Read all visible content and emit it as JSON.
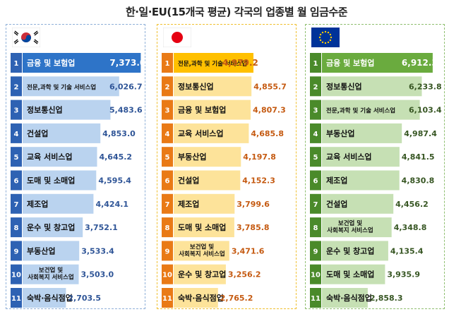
{
  "title": "한·일·EU(15개국 평균) 각국의 업종별 월 임금수준",
  "colors": {
    "korea_num_bg": "#2e62b3",
    "korea_bar_top": "#2e74c8",
    "korea_bar": "#bad3ef",
    "korea_text": "#2f5597",
    "japan_num_bg": "#e97a16",
    "japan_bar_top": "#ffc000",
    "japan_bar": "#fde39a",
    "japan_text": "#c55a11",
    "eu_num_bg": "#4a8a2a",
    "eu_bar_top": "#6aab3e",
    "eu_bar": "#c6e0b4",
    "eu_text": "#375623"
  },
  "flags": {
    "korea": "korea-flag-icon",
    "japan": "japan-flag-icon",
    "eu": "eu-flag-icon"
  },
  "chart_data": [
    {
      "type": "bar",
      "panel": "korea",
      "ranks": [
        "1",
        "2",
        "3",
        "4",
        "5",
        "6",
        "7",
        "8",
        "9",
        "10",
        "11"
      ],
      "categories": [
        "금융 및 보험업",
        "전문,과학 및 기술 서비스업",
        "정보통신업",
        "건설업",
        "교육 서비스업",
        "도매 및 소매업",
        "제조업",
        "운수 및 창고업",
        "부동산업",
        "보건업 및 사회복지 서비스업",
        "숙박·음식점업"
      ],
      "values": [
        7373.0,
        6026.7,
        5483.6,
        4853.0,
        4645.2,
        4595.4,
        4424.1,
        3752.1,
        3533.4,
        3503.0,
        2703.5
      ],
      "labels": [
        "7,373.0",
        "6,026.7",
        "5,483.6",
        "4,853.0",
        "4,645.2",
        "4,595.4",
        "4,424.1",
        "3,752.1",
        "3,533.4",
        "3,503.0",
        "2,703.5"
      ]
    },
    {
      "type": "bar",
      "panel": "japan",
      "ranks": [
        "1",
        "2",
        "3",
        "4",
        "5",
        "6",
        "7",
        "8",
        "9",
        "10",
        "11"
      ],
      "categories": [
        "전문,과학 및 기술 서비스업",
        "정보통신업",
        "금융 및 보험업",
        "교육 서비스업",
        "부동산업",
        "건설업",
        "제조업",
        "도매 및 소매업",
        "보건업 및 사회복지 서비스업",
        "운수 및 창고업",
        "숙박·음식점업"
      ],
      "values": [
        4979.2,
        4855.7,
        4807.3,
        4685.8,
        4197.8,
        4152.3,
        3799.6,
        3785.8,
        3471.6,
        3256.2,
        2765.2
      ],
      "labels": [
        "4,979.2",
        "4,855.7",
        "4,807.3",
        "4,685.8",
        "4,197.8",
        "4,152.3",
        "3,799.6",
        "3,785.8",
        "3,471.6",
        "3,256.2",
        "2,765.2"
      ]
    },
    {
      "type": "bar",
      "panel": "eu",
      "ranks": [
        "1",
        "2",
        "3",
        "4",
        "5",
        "6",
        "7",
        "8",
        "9",
        "10",
        "11"
      ],
      "categories": [
        "금융 및 보험업",
        "정보통신업",
        "전문,과학 및 기술 서비스업",
        "부동산업",
        "교육 서비스업",
        "제조업",
        "건설업",
        "보건업 및 사회복지 서비스업",
        "운수 및 창고업",
        "도매 및 소매업",
        "숙박·음식점업"
      ],
      "values": [
        6912.3,
        6233.8,
        6103.4,
        4987.4,
        4841.5,
        4830.8,
        4456.2,
        4348.8,
        4135.4,
        3935.9,
        2858.3
      ],
      "labels": [
        "6,912.3",
        "6,233.8",
        "6,103.4",
        "4,987.4",
        "4,841.5",
        "4,830.8",
        "4,456.2",
        "4,348.8",
        "4,135.4",
        "3,935.9",
        "2,858.3"
      ]
    }
  ]
}
